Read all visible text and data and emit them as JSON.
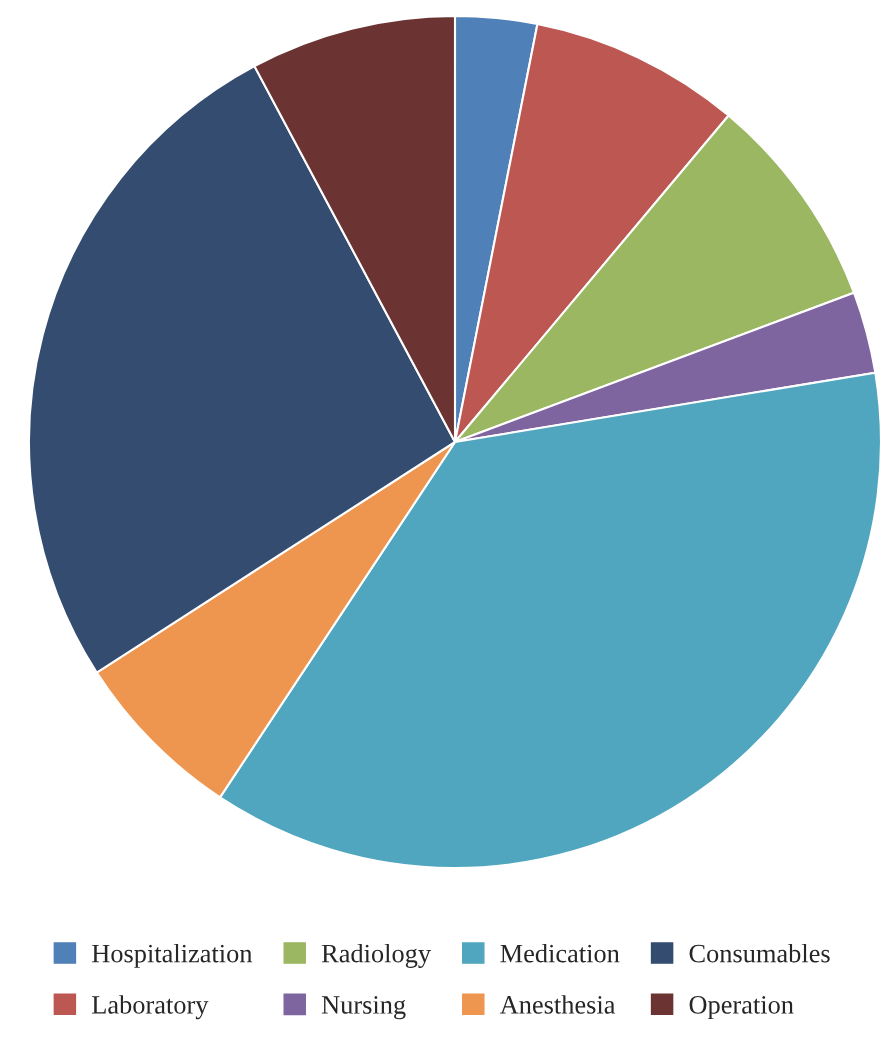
{
  "chart_data": {
    "type": "pie",
    "categories": [
      "Hospitalization",
      "Laboratory",
      "Radiology",
      "Nursing",
      "Medication",
      "Anesthesia",
      "Consumables",
      "Operation"
    ],
    "values": [
      3.1,
      8.0,
      8.2,
      3.1,
      36.9,
      6.6,
      26.3,
      7.8
    ],
    "colors": [
      "#5080b8",
      "#bd5752",
      "#9bb762",
      "#7f65a0",
      "#50a6be",
      "#ee9650",
      "#344c70",
      "#6b3432"
    ],
    "legend": "bottom"
  }
}
